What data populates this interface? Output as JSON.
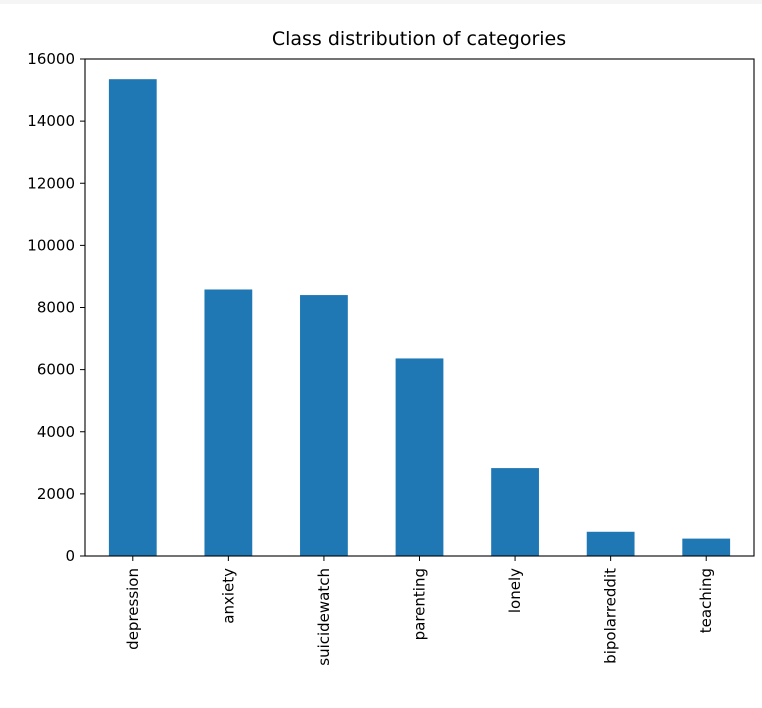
{
  "chart_data": {
    "type": "bar",
    "title": "Class distribution of categories",
    "xlabel": "",
    "ylabel": "",
    "categories": [
      "depression",
      "anxiety",
      "suicidewatch",
      "parenting",
      "lonely",
      "bipolarreddit",
      "teaching"
    ],
    "values": [
      15350,
      8580,
      8400,
      6360,
      2830,
      780,
      560
    ],
    "ylim": [
      0,
      16000
    ],
    "yticks": [
      0,
      2000,
      4000,
      6000,
      8000,
      10000,
      12000,
      14000,
      16000
    ],
    "bar_color": "#1f77b4",
    "grid": false,
    "legend": "none"
  }
}
